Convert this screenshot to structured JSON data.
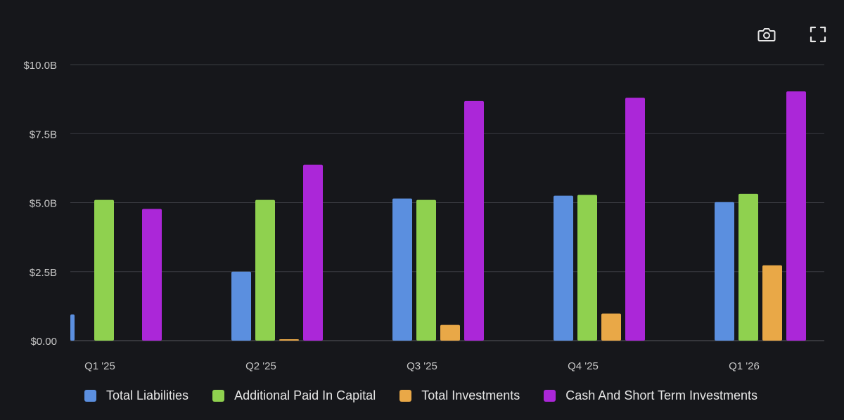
{
  "toolbar": {
    "camera_icon": "camera-icon",
    "fullscreen_icon": "fullscreen-icon"
  },
  "chart_data": {
    "type": "bar",
    "categories": [
      "Q1 '25",
      "Q2 '25",
      "Q3 '25",
      "Q4 '25",
      "Q1 '26"
    ],
    "series": [
      {
        "name": "Total Liabilities",
        "color": "#5b8fdf",
        "values": [
          0.95,
          2.5,
          5.15,
          5.25,
          5.02
        ]
      },
      {
        "name": "Additional Paid In Capital",
        "color": "#8fd14f",
        "values": [
          5.1,
          5.1,
          5.1,
          5.28,
          5.32
        ]
      },
      {
        "name": "Total Investments",
        "color": "#e9a847",
        "values": [
          0.0,
          0.05,
          0.57,
          0.98,
          2.73
        ]
      },
      {
        "name": "Cash And Short Term Investments",
        "color": "#ab27d8",
        "values": [
          4.77,
          6.37,
          8.68,
          8.8,
          9.03
        ]
      }
    ],
    "yticks": [
      "$0.00",
      "$2.5B",
      "$5.0B",
      "$7.5B",
      "$10.0B"
    ],
    "ytick_values": [
      0,
      2.5,
      5,
      7.5,
      10
    ],
    "ylim": [
      0,
      10
    ],
    "grid": true,
    "legend_position": "bottom",
    "colors": {
      "background": "#16171b",
      "grid": "#3a3c42",
      "text": "#c8c8c8"
    }
  }
}
